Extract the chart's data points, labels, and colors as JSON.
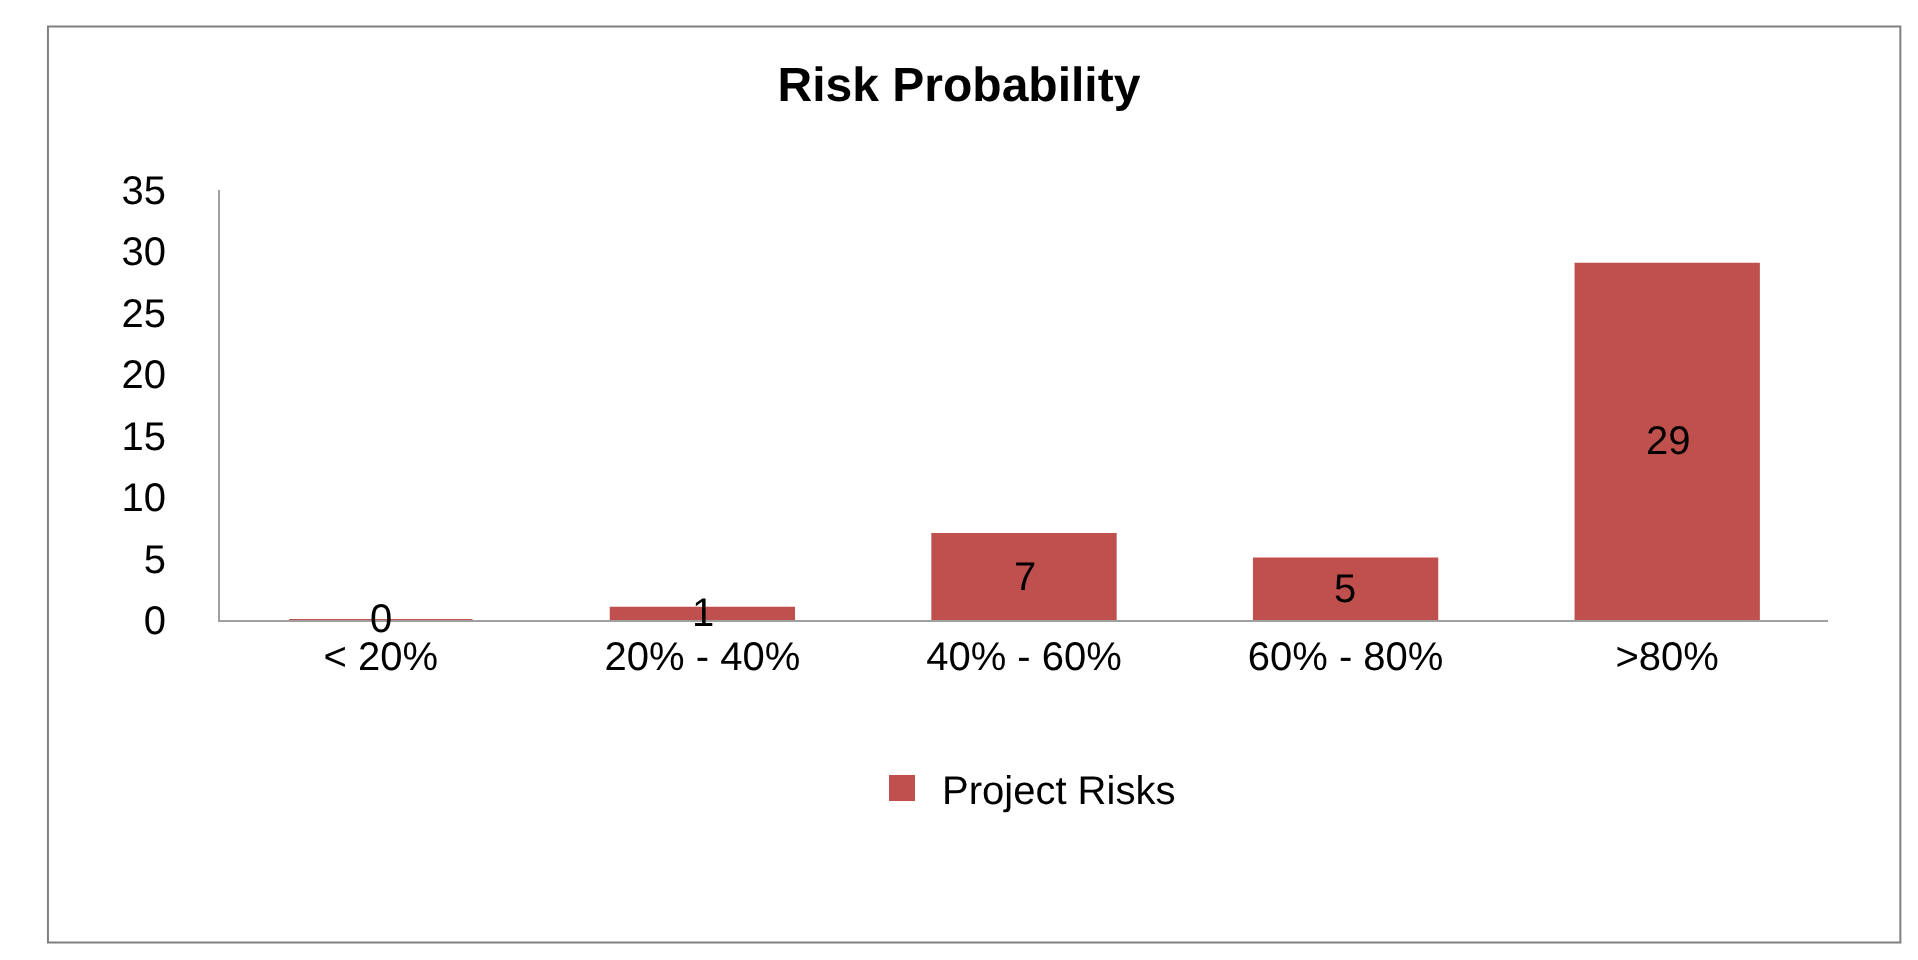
{
  "chart_data": {
    "type": "bar",
    "title": "Risk Probability",
    "categories": [
      "< 20%",
      "20% - 40%",
      "40% - 60%",
      "60% - 80%",
      ">80%"
    ],
    "series": [
      {
        "name": "Project Risks",
        "color": "#c0504d",
        "values": [
          0,
          1,
          7,
          5,
          29
        ]
      }
    ],
    "ylim": [
      0,
      35
    ],
    "yticks": [
      0,
      5,
      10,
      15,
      20,
      25,
      30,
      35
    ],
    "legend": "bottom",
    "data_labels": true
  }
}
